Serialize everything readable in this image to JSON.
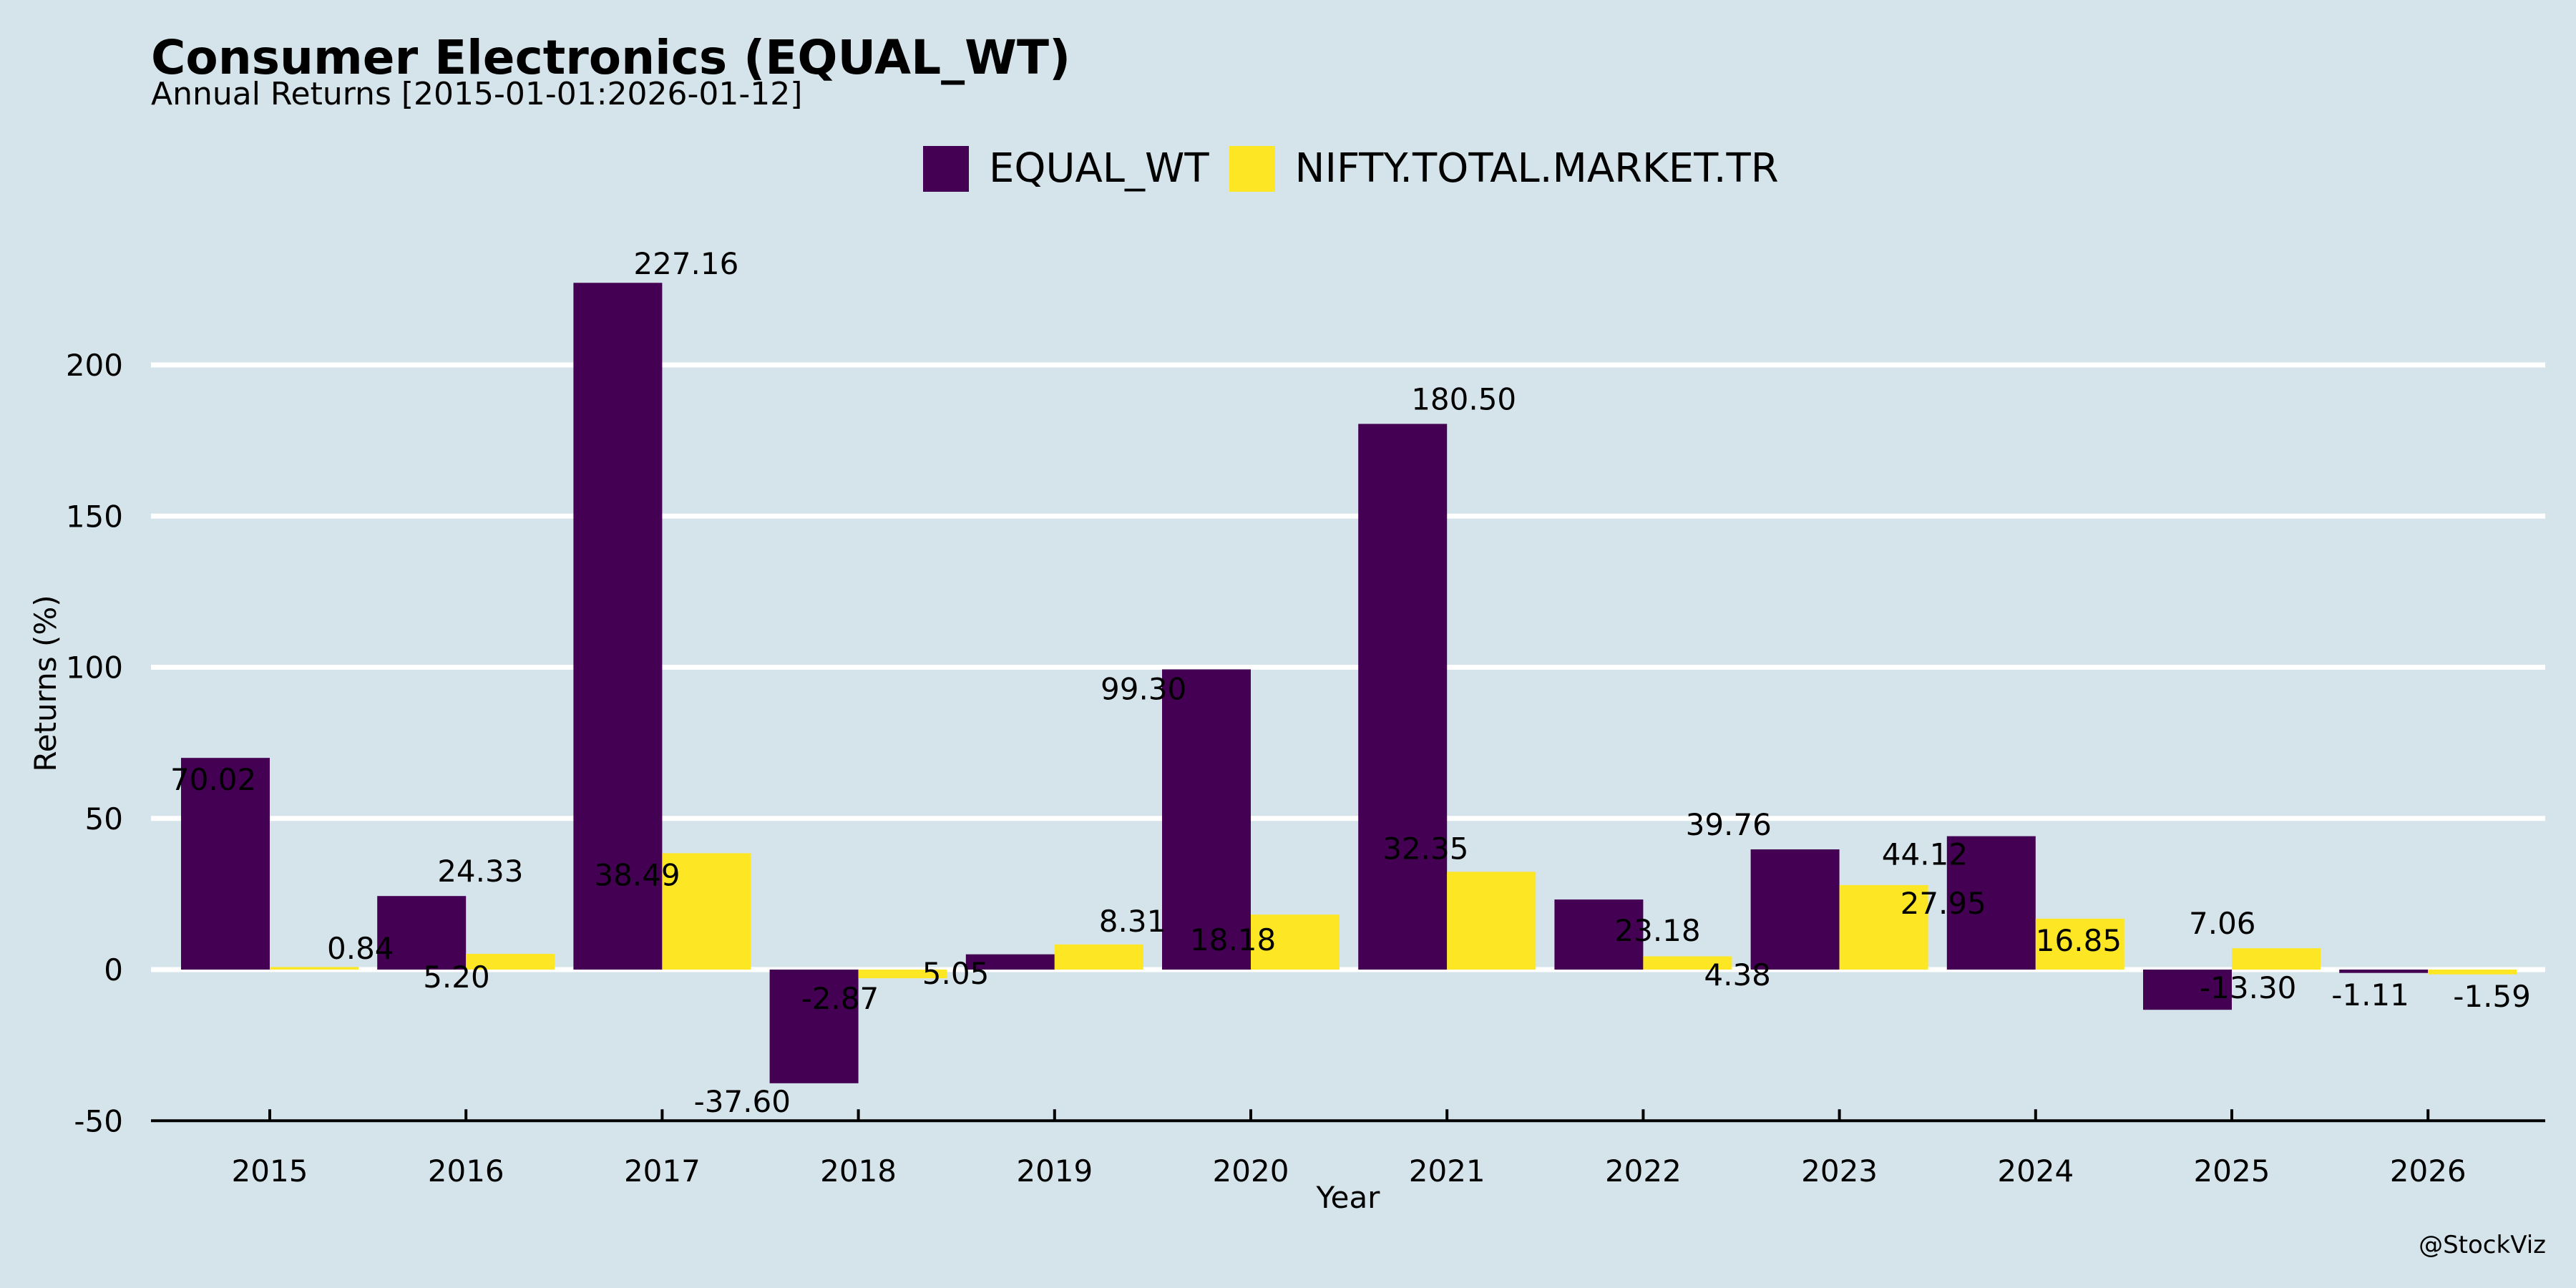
{
  "title": "Consumer Electronics (EQUAL_WT)",
  "subtitle": "Annual Returns [2015-01-01:2026-01-12]",
  "watermark": "@StockViz",
  "colors": {
    "background": "#d5e4eb",
    "grid": "#ffffff",
    "series_equal": "#440154",
    "series_nifty": "#fde725"
  },
  "chart_data": {
    "type": "bar",
    "title": "Consumer Electronics (EQUAL_WT)",
    "subtitle": "Annual Returns [2015-01-01:2026-01-12]",
    "xlabel": "Year",
    "ylabel": "Returns (%)",
    "categories": [
      "2015",
      "2016",
      "2017",
      "2018",
      "2019",
      "2020",
      "2021",
      "2022",
      "2023",
      "2024",
      "2025",
      "2026"
    ],
    "series": [
      {
        "name": "EQUAL_WT",
        "color": "#440154",
        "values": [
          70.02,
          24.33,
          227.16,
          -37.6,
          5.05,
          99.3,
          180.5,
          23.18,
          39.76,
          44.12,
          -13.3,
          -1.11
        ]
      },
      {
        "name": "NIFTY.TOTAL.MARKET.TR",
        "color": "#fde725",
        "values": [
          0.84,
          5.2,
          38.49,
          -2.87,
          8.31,
          18.18,
          32.35,
          4.38,
          27.95,
          16.85,
          7.06,
          -1.59
        ]
      }
    ],
    "yticks": [
      -50,
      0,
      50,
      100,
      150,
      200
    ],
    "ylim": [
      -50,
      240
    ],
    "grid": "horizontal",
    "legend_position": "top-center",
    "data_labels": true
  }
}
